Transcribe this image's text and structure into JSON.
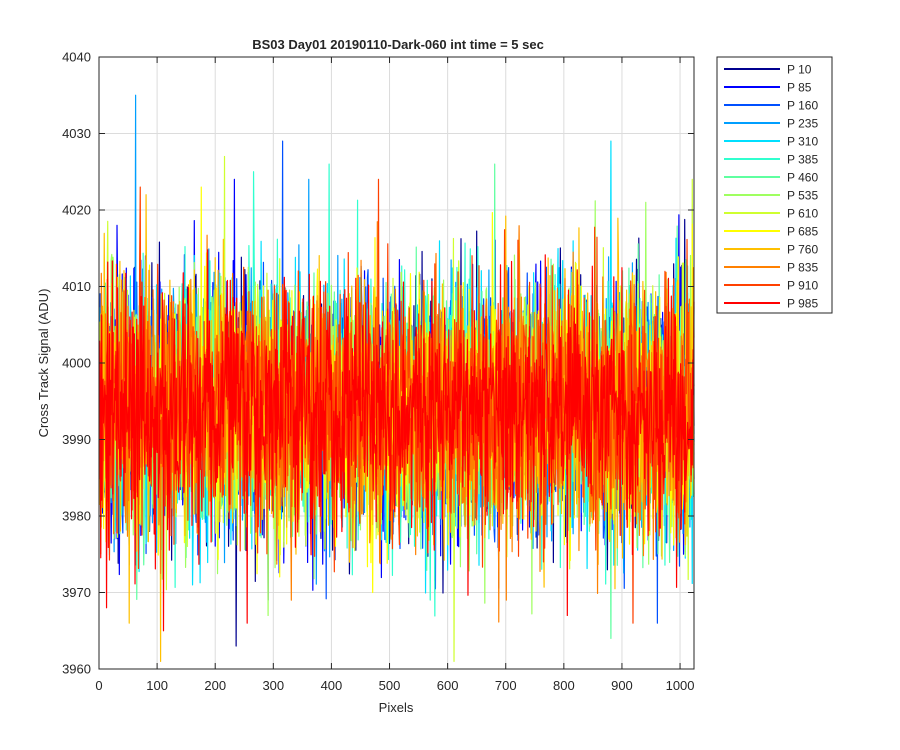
{
  "chart_data": {
    "type": "line",
    "title": "BS03 Day01 20190110-Dark-060 int time = 5 sec",
    "xlabel": "Pixels",
    "ylabel": "Cross Track Signal (ADU)",
    "xlim": [
      0,
      1024
    ],
    "ylim": [
      3960,
      4040
    ],
    "xticks": [
      0,
      100,
      200,
      300,
      400,
      500,
      600,
      700,
      800,
      900,
      1000
    ],
    "yticks": [
      3960,
      3970,
      3980,
      3990,
      4000,
      4010,
      4020,
      4030,
      4040
    ],
    "grid": true,
    "legend_position": "outside-top-right",
    "n_points": 1024,
    "series": [
      {
        "name": "P 10",
        "color": "#00008f",
        "mean": 3994,
        "sd": 8.0,
        "seed": 11,
        "spikes": [
          [
            235,
            3963
          ],
          [
            290,
            3969
          ]
        ]
      },
      {
        "name": "P 85",
        "color": "#0000ff",
        "mean": 3994,
        "sd": 8.0,
        "seed": 23,
        "spikes": [
          [
            232,
            4024
          ],
          [
            30,
            4018
          ]
        ]
      },
      {
        "name": "P 160",
        "color": "#0050ff",
        "mean": 3994,
        "sd": 8.0,
        "seed": 37,
        "spikes": [
          [
            315,
            4029
          ],
          [
            960,
            3966
          ]
        ]
      },
      {
        "name": "P 235",
        "color": "#009fff",
        "mean": 3994,
        "sd": 8.0,
        "seed": 41,
        "spikes": [
          [
            62,
            4035
          ],
          [
            360,
            4024
          ]
        ]
      },
      {
        "name": "P 310",
        "color": "#00dfff",
        "mean": 3994,
        "sd": 8.0,
        "seed": 53,
        "spikes": [
          [
            880,
            4029
          ],
          [
            160,
            3971
          ]
        ]
      },
      {
        "name": "P 385",
        "color": "#30ffcf",
        "mean": 3994,
        "sd": 8.0,
        "seed": 67,
        "spikes": [
          [
            265,
            4025
          ],
          [
            395,
            4026
          ]
        ]
      },
      {
        "name": "P 460",
        "color": "#5fffa0",
        "mean": 3994,
        "sd": 8.0,
        "seed": 79,
        "spikes": [
          [
            680,
            4026
          ],
          [
            880,
            3964
          ]
        ]
      },
      {
        "name": "P 535",
        "color": "#9fff60",
        "mean": 3994,
        "sd": 8.0,
        "seed": 83,
        "spikes": [
          [
            290,
            3967
          ],
          [
            940,
            4021
          ]
        ]
      },
      {
        "name": "P 610",
        "color": "#cfff30",
        "mean": 3994,
        "sd": 8.0,
        "seed": 97,
        "spikes": [
          [
            215,
            4027
          ],
          [
            610,
            3961
          ],
          [
            1020,
            4024
          ]
        ]
      },
      {
        "name": "P 685",
        "color": "#ffff00",
        "mean": 3994,
        "sd": 8.0,
        "seed": 101,
        "spikes": [
          [
            175,
            4023
          ],
          [
            470,
            3970
          ]
        ]
      },
      {
        "name": "P 760",
        "color": "#ffc000",
        "mean": 3994,
        "sd": 8.0,
        "seed": 113,
        "spikes": [
          [
            105,
            3961
          ],
          [
            80,
            4022
          ]
        ]
      },
      {
        "name": "P 835",
        "color": "#ff8000",
        "mean": 3994,
        "sd": 8.0,
        "seed": 127,
        "spikes": [
          [
            330,
            3969
          ],
          [
            700,
            3969
          ]
        ]
      },
      {
        "name": "P 910",
        "color": "#ff4000",
        "mean": 3994,
        "sd": 8.0,
        "seed": 131,
        "spikes": [
          [
            70,
            4023
          ],
          [
            480,
            4024
          ]
        ]
      },
      {
        "name": "P 985",
        "color": "#ff0000",
        "mean": 3994,
        "sd": 7.5,
        "seed": 139,
        "spikes": [
          [
            12,
            3968
          ],
          [
            805,
            3967
          ],
          [
            110,
            3965
          ]
        ]
      }
    ]
  }
}
